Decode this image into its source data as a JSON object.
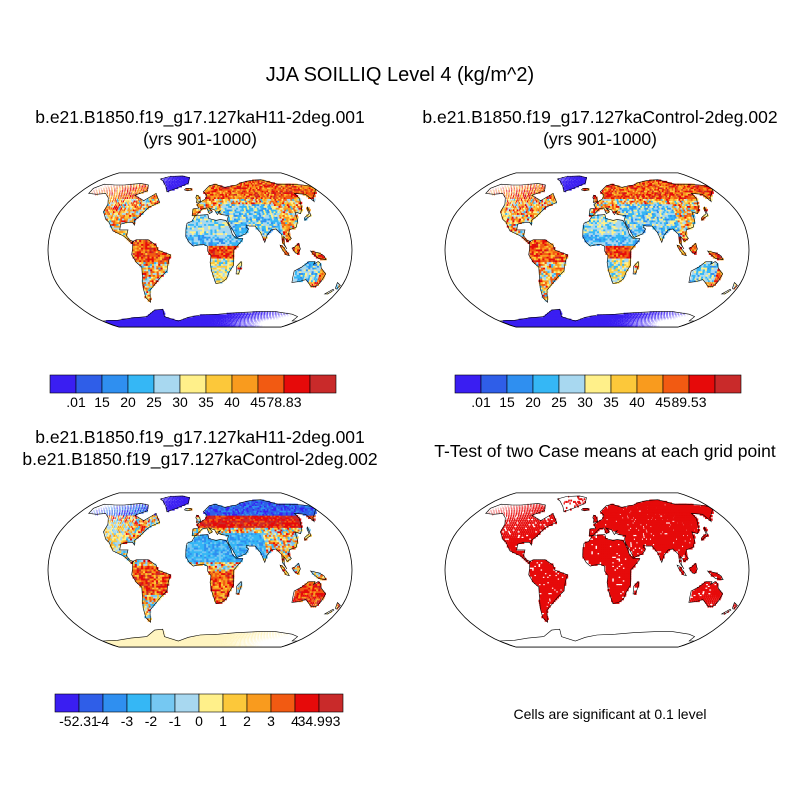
{
  "figure": {
    "title": "JJA SOILLIQ Level 4 (kg/m^2)"
  },
  "panels": [
    {
      "id": "case1",
      "title_lines": [
        "b.e21.B1850.f19_g17.127kaH11-2deg.001",
        "(yrs 901-1000)"
      ],
      "colorbar": {
        "labels": [
          ".01",
          "15",
          "20",
          "25",
          "30",
          "35",
          "40",
          "45",
          "78.83"
        ],
        "colors": [
          "#3a1ef2",
          "#2f5ee8",
          "#2f8ff0",
          "#35b7f5",
          "#a8d8f0",
          "#fff08a",
          "#fcc83a",
          "#f99b1e",
          "#f25a12",
          "#e60a0a",
          "#c92a2a"
        ]
      }
    },
    {
      "id": "case2",
      "title_lines": [
        "b.e21.B1850.f19_g17.127kaControl-2deg.002",
        "(yrs 901-1000)"
      ],
      "colorbar": {
        "labels": [
          ".01",
          "15",
          "20",
          "25",
          "30",
          "35",
          "40",
          "45",
          "89.53"
        ],
        "colors": [
          "#3a1ef2",
          "#2f5ee8",
          "#2f8ff0",
          "#35b7f5",
          "#a8d8f0",
          "#fff08a",
          "#fcc83a",
          "#f99b1e",
          "#f25a12",
          "#e60a0a",
          "#c92a2a"
        ]
      }
    },
    {
      "id": "difference",
      "title_lines": [
        "b.e21.B1850.f19_g17.127kaH11-2deg.001",
        "b.e21.B1850.f19_g17.127kaControl-2deg.002"
      ],
      "colorbar": {
        "labels": [
          "-52.31",
          "-4",
          "-3",
          "-2",
          "-1",
          "0",
          "1",
          "2",
          "3",
          "4",
          "34.993"
        ],
        "colors": [
          "#3a1ef2",
          "#2f5ee8",
          "#2f8ff0",
          "#35b7f5",
          "#75c8f2",
          "#a8d8f0",
          "#fff08a",
          "#fcc83a",
          "#f99b1e",
          "#f25a12",
          "#e60a0a",
          "#c92a2a"
        ]
      }
    },
    {
      "id": "ttest",
      "title_lines": [
        "T-Test of two Case means at each grid point"
      ],
      "note": "Cells are significant at 0.1 level",
      "fill_color": "#e60a0a"
    }
  ]
}
